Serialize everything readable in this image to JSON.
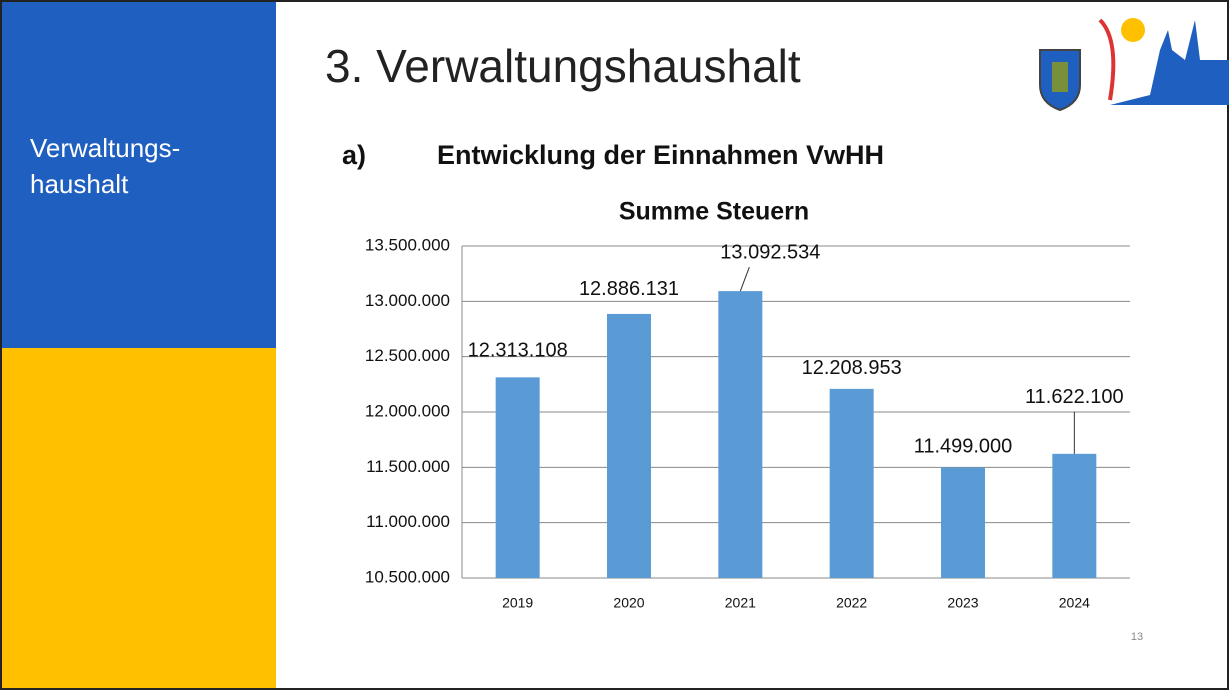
{
  "slide": {
    "title": "3. Verwaltungshaushalt",
    "sidebar": [
      "Verwaltungs-",
      "haushalt"
    ],
    "heading_number": "a)",
    "heading": "Entwicklung der Einnahmen VwHH",
    "page_number": "13"
  },
  "chart_data": {
    "type": "bar",
    "title": "Summe Steuern",
    "categories": [
      "2019",
      "2020",
      "2021",
      "2022",
      "2023",
      "2024"
    ],
    "values": [
      12313108,
      12886131,
      13092534,
      12208953,
      11499000,
      11622100
    ],
    "value_labels": [
      "12.313.108",
      "12.886.131",
      "13.092.534",
      "12.208.953",
      "11.499.000",
      "11.622.100"
    ],
    "color": "#5b9bd5",
    "ylim": [
      10500000,
      13500000
    ],
    "yticks": [
      {
        "value": 10500000,
        "label": "10.500.000"
      },
      {
        "value": 11000000,
        "label": "11.000.000"
      },
      {
        "value": 11500000,
        "label": "11.500.000"
      },
      {
        "value": 12000000,
        "label": "12.000.000"
      },
      {
        "value": 12500000,
        "label": "12.500.000"
      },
      {
        "value": 13000000,
        "label": "13.000.000"
      },
      {
        "value": 13500000,
        "label": "13.500.000"
      }
    ],
    "grid": true
  }
}
